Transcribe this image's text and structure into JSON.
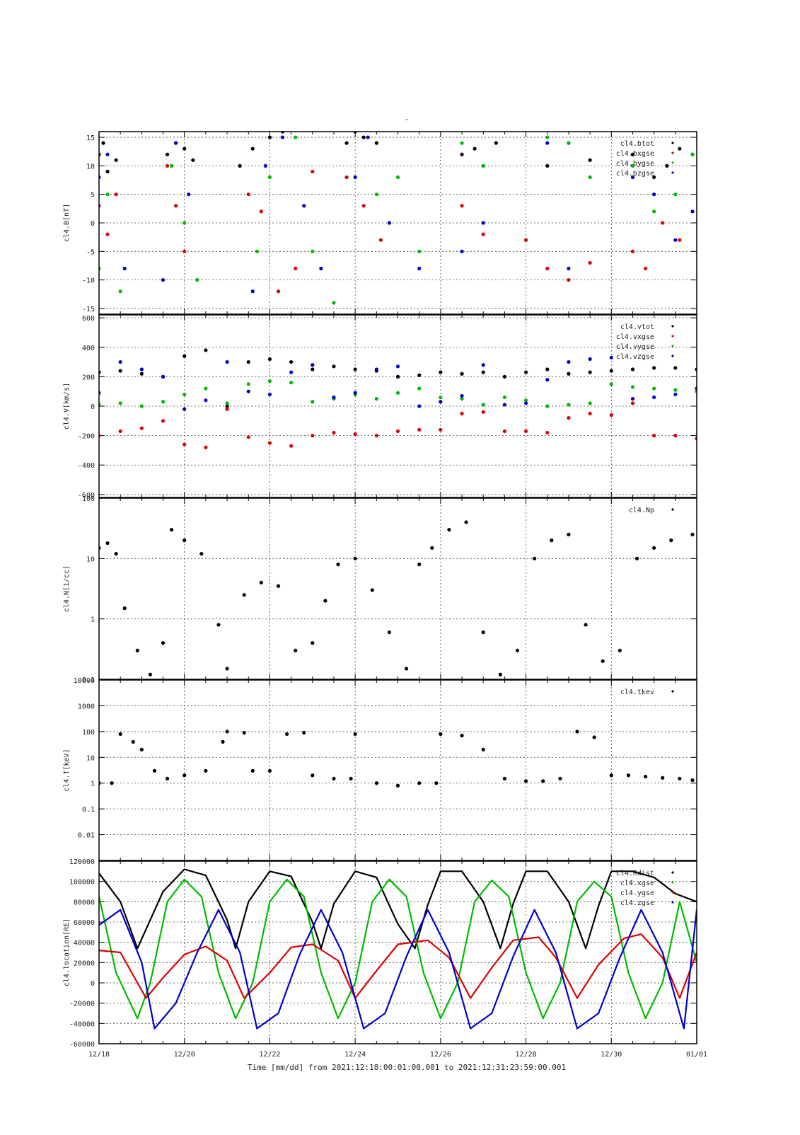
{
  "page_title": "-",
  "time_caption": "Time [mm/dd]  from 2021:12:18:00:01:00.001  to  2021:12:31:23:59:00.001",
  "x_axis": {
    "tick_labels": [
      "12/18",
      "12/20",
      "12/22",
      "12/24",
      "12/26",
      "12/28",
      "12/30",
      "01/01"
    ],
    "range_days": [
      0,
      14
    ]
  },
  "colors": {
    "black": "#000000",
    "red": "#dd0000",
    "green": "#00bb00",
    "blue": "#0000cc"
  },
  "chart_data": [
    {
      "type": "scatter",
      "ylabel": "cl4.B[nT]",
      "ylim": [
        -16,
        16
      ],
      "yticks": [
        15,
        10,
        5,
        0,
        -5,
        -10,
        -15
      ],
      "ytick_labels": [
        "15",
        "10",
        "5",
        "0",
        "-5",
        "-10",
        "-15"
      ],
      "grid": true,
      "legend_placement": "top-right",
      "series": [
        {
          "name": "cl4.btot",
          "color": "#000000",
          "x": [
            0,
            0.1,
            0.2,
            0.4,
            1.6,
            1.8,
            2.0,
            2.2,
            3.3,
            3.6,
            4.0,
            4.3,
            5.8,
            6.0,
            6.2,
            6.5,
            8.5,
            8.8,
            9.0,
            9.3,
            10.5,
            11.0,
            11.5,
            12.5,
            13.0,
            13.3,
            13.6,
            13.9
          ],
          "y": [
            12,
            14,
            9,
            11,
            12,
            14,
            13,
            11,
            10,
            13,
            15,
            16,
            14,
            16,
            15,
            14,
            12,
            13,
            10,
            14,
            10,
            14,
            11,
            12,
            8,
            10,
            13,
            12
          ]
        },
        {
          "name": "cl4.bxgse",
          "color": "#dd0000",
          "x": [
            0,
            0.2,
            0.4,
            1.6,
            1.8,
            2.0,
            3.5,
            3.8,
            4.2,
            4.6,
            5.0,
            5.8,
            6.2,
            6.6,
            8.5,
            9.0,
            10.0,
            10.5,
            11.0,
            11.5,
            12.5,
            12.8,
            13.2,
            13.6
          ],
          "y": [
            3,
            -2,
            5,
            10,
            3,
            -5,
            5,
            2,
            -12,
            -8,
            9,
            8,
            3,
            -3,
            3,
            -2,
            -3,
            -8,
            -10,
            -7,
            -5,
            -8,
            0,
            -3
          ]
        },
        {
          "name": "cl4.bygse",
          "color": "#00bb00",
          "x": [
            0,
            0.2,
            0.5,
            1.7,
            2.0,
            2.3,
            3.7,
            4.0,
            4.6,
            5.0,
            5.5,
            6.5,
            7.0,
            7.5,
            8.5,
            9.0,
            10.5,
            11.0,
            11.5,
            12.5,
            13.0,
            13.5,
            13.9
          ],
          "y": [
            -8,
            5,
            -12,
            10,
            0,
            -10,
            -5,
            8,
            15,
            -5,
            -14,
            5,
            8,
            -5,
            14,
            10,
            15,
            14,
            8,
            10,
            2,
            5,
            12
          ]
        },
        {
          "name": "cl4.bzgse",
          "color": "#0000cc",
          "x": [
            0,
            0.2,
            0.6,
            1.5,
            1.8,
            2.1,
            3.6,
            3.9,
            4.3,
            4.8,
            5.2,
            6.0,
            6.3,
            6.8,
            7.5,
            8.5,
            9.0,
            10.5,
            11.0,
            12.5,
            13.0,
            13.5,
            13.9
          ],
          "y": [
            8,
            12,
            -8,
            -10,
            14,
            5,
            -12,
            10,
            15,
            3,
            -8,
            8,
            15,
            0,
            -8,
            -5,
            0,
            14,
            -8,
            8,
            5,
            -3,
            2
          ]
        }
      ]
    },
    {
      "type": "scatter",
      "ylabel": "cl4.V[km/s]",
      "ylim": [
        -620,
        620
      ],
      "yticks": [
        600,
        400,
        200,
        0,
        -200,
        -400,
        -600
      ],
      "ytick_labels": [
        "600",
        "400",
        "200",
        "0",
        "-200",
        "-400",
        "-600"
      ],
      "grid": true,
      "legend_placement": "top-right",
      "series": [
        {
          "name": "cl4.vtot",
          "color": "#000000",
          "x": [
            0,
            0.5,
            1.0,
            1.5,
            2.0,
            2.5,
            3.0,
            3.5,
            4.0,
            4.5,
            5.0,
            5.5,
            6.0,
            6.5,
            7.0,
            7.5,
            8.0,
            8.5,
            9.0,
            9.5,
            10.0,
            10.5,
            11.0,
            11.5,
            12.0,
            12.5,
            13.0,
            13.5,
            14.0
          ],
          "y": [
            230,
            240,
            220,
            200,
            340,
            380,
            0,
            300,
            320,
            300,
            250,
            270,
            250,
            240,
            200,
            210,
            230,
            220,
            230,
            200,
            230,
            250,
            220,
            230,
            240,
            250,
            260,
            260,
            250
          ]
        },
        {
          "name": "cl4.vxgse",
          "color": "#dd0000",
          "x": [
            0,
            0.5,
            1.0,
            1.5,
            2.0,
            2.5,
            3.0,
            3.5,
            4.0,
            4.5,
            5.0,
            5.5,
            6.0,
            6.5,
            7.0,
            7.5,
            8.0,
            8.5,
            9.0,
            9.5,
            10.0,
            10.5,
            11.0,
            11.5,
            12.0,
            12.5,
            13.0,
            13.5,
            14.0
          ],
          "y": [
            -200,
            -170,
            -150,
            -100,
            -260,
            -280,
            -20,
            -210,
            -250,
            -270,
            -200,
            -180,
            -190,
            -200,
            -170,
            -160,
            -160,
            -50,
            -40,
            -170,
            -170,
            -180,
            -80,
            -50,
            -60,
            20,
            -200,
            -200,
            -220
          ]
        },
        {
          "name": "cl4.vygse",
          "color": "#00bb00",
          "x": [
            0,
            0.5,
            1.0,
            1.5,
            2.0,
            2.5,
            3.0,
            3.5,
            4.0,
            4.5,
            5.0,
            5.5,
            6.0,
            6.5,
            7.0,
            7.5,
            8.0,
            8.5,
            9.0,
            9.5,
            10.0,
            10.5,
            11.0,
            11.5,
            12.0,
            12.5,
            13.0,
            13.5,
            14.0
          ],
          "y": [
            10,
            20,
            0,
            30,
            80,
            120,
            20,
            150,
            170,
            160,
            30,
            50,
            80,
            50,
            90,
            120,
            60,
            50,
            10,
            60,
            40,
            0,
            10,
            20,
            150,
            130,
            120,
            110,
            100
          ]
        },
        {
          "name": "cl4.vzgse",
          "color": "#0000cc",
          "x": [
            0,
            0.5,
            1.0,
            1.5,
            2.0,
            2.5,
            3.0,
            3.5,
            4.0,
            4.5,
            5.0,
            5.5,
            6.0,
            6.5,
            7.0,
            7.5,
            8.0,
            8.5,
            9.0,
            9.5,
            10.0,
            10.5,
            11.0,
            11.5,
            12.0,
            12.5,
            13.0,
            13.5,
            14.0
          ],
          "y": [
            90,
            300,
            250,
            200,
            -20,
            40,
            300,
            100,
            80,
            230,
            280,
            60,
            90,
            250,
            270,
            0,
            30,
            70,
            280,
            10,
            20,
            180,
            300,
            320,
            330,
            50,
            60,
            80,
            120
          ]
        }
      ]
    },
    {
      "type": "scatter",
      "ylabel": "cl4.N[1/cc]",
      "y_scale": "log",
      "ylim": [
        0.1,
        100
      ],
      "yticks": [
        100,
        10,
        1,
        0.1
      ],
      "ytick_labels": [
        "100",
        "10",
        "1",
        "0.1"
      ],
      "grid": true,
      "legend_placement": "top-right",
      "series": [
        {
          "name": "cl4.Np",
          "color": "#000000",
          "x": [
            0,
            0.2,
            0.4,
            0.6,
            0.9,
            1.2,
            1.5,
            1.7,
            2.0,
            2.4,
            2.8,
            3.0,
            3.4,
            3.8,
            4.2,
            4.6,
            5.0,
            5.3,
            5.6,
            6.0,
            6.4,
            6.8,
            7.2,
            7.5,
            7.8,
            8.2,
            8.6,
            9.0,
            9.4,
            9.8,
            10.2,
            10.6,
            11.0,
            11.4,
            11.8,
            12.2,
            12.6,
            13.0,
            13.4,
            13.9
          ],
          "y": [
            15,
            18,
            12,
            1.5,
            0.3,
            0.12,
            0.4,
            30,
            20,
            12,
            0.8,
            0.15,
            2.5,
            4,
            3.5,
            0.3,
            0.4,
            2,
            8,
            10,
            3,
            0.6,
            0.15,
            8,
            15,
            30,
            40,
            0.6,
            0.12,
            0.3,
            10,
            20,
            25,
            0.8,
            0.2,
            0.3,
            10,
            15,
            20,
            25
          ]
        }
      ]
    },
    {
      "type": "scatter",
      "ylabel": "cl4.T[keV]",
      "y_scale": "log",
      "ylim": [
        0.001,
        10000
      ],
      "yticks": [
        10000,
        1000,
        100,
        10,
        1,
        0.1,
        0.01
      ],
      "ytick_labels": [
        "10000",
        "1000",
        "100",
        "10",
        "1",
        "0.1",
        "0.01"
      ],
      "grid": true,
      "legend_placement": "top-right",
      "series": [
        {
          "name": "cl4.tkev",
          "color": "#000000",
          "x": [
            0,
            0.3,
            0.5,
            0.8,
            1.0,
            1.3,
            1.6,
            2.0,
            2.5,
            2.9,
            3.0,
            3.4,
            3.6,
            4.0,
            4.4,
            4.8,
            5.0,
            5.5,
            5.9,
            6.0,
            6.5,
            7.0,
            7.5,
            7.9,
            8.0,
            8.5,
            9.0,
            9.5,
            10.0,
            10.4,
            10.8,
            11.2,
            11.6,
            12.0,
            12.4,
            12.8,
            13.2,
            13.6,
            13.9
          ],
          "y": [
            1,
            1,
            80,
            40,
            20,
            3,
            1.5,
            2,
            3,
            40,
            100,
            90,
            3,
            3,
            80,
            90,
            2,
            1.5,
            1.5,
            80,
            1,
            0.8,
            1,
            1,
            80,
            70,
            20,
            1.5,
            1.2,
            1.2,
            1.5,
            100,
            60,
            2,
            2,
            1.8,
            1.6,
            1.5,
            1.3
          ]
        }
      ]
    },
    {
      "type": "line",
      "ylabel": "cl4.location[RE]",
      "ylim": [
        -60000,
        120000
      ],
      "yticks": [
        120000,
        100000,
        80000,
        60000,
        40000,
        20000,
        0,
        -20000,
        -40000,
        -60000
      ],
      "ytick_labels": [
        "120000",
        "100000",
        "80000",
        "60000",
        "40000",
        "20000",
        "0",
        "-20000",
        "-40000",
        "-60000"
      ],
      "grid": true,
      "legend_placement": "top-right",
      "series": [
        {
          "name": "cl4.Rdist",
          "color": "#000000",
          "x": [
            0,
            0.5,
            0.9,
            1.5,
            2.0,
            2.5,
            3.0,
            3.2,
            3.5,
            4.0,
            4.5,
            5.0,
            5.2,
            5.5,
            6.0,
            6.5,
            7.0,
            7.4,
            7.7,
            8.0,
            8.5,
            9.0,
            9.4,
            9.7,
            10.0,
            10.5,
            11.0,
            11.4,
            11.7,
            12.0,
            12.5,
            13.0,
            13.5,
            14.0
          ],
          "y": [
            108000,
            80000,
            34000,
            90000,
            112000,
            106000,
            62000,
            34000,
            80000,
            110000,
            105000,
            60000,
            34000,
            78000,
            110000,
            104000,
            58000,
            34000,
            77000,
            110000,
            110000,
            80000,
            34000,
            78000,
            110000,
            110000,
            80000,
            34000,
            76000,
            110000,
            110000,
            104000,
            88000,
            80000
          ]
        },
        {
          "name": "cl4.xgse",
          "color": "#00bb00",
          "x": [
            0,
            0.4,
            0.9,
            1.2,
            1.6,
            2.0,
            2.4,
            2.8,
            3.2,
            3.6,
            4.0,
            4.4,
            4.8,
            5.2,
            5.6,
            6.0,
            6.4,
            6.8,
            7.2,
            7.6,
            8.0,
            8.4,
            8.8,
            9.2,
            9.6,
            10.0,
            10.4,
            10.8,
            11.2,
            11.6,
            12.0,
            12.4,
            12.8,
            13.2,
            13.6,
            14.0
          ],
          "y": [
            85000,
            10000,
            -35000,
            0,
            80000,
            102000,
            85000,
            10000,
            -35000,
            0,
            80000,
            102000,
            85000,
            10000,
            -35000,
            0,
            80000,
            102000,
            85000,
            10000,
            -35000,
            0,
            80000,
            101000,
            85000,
            10000,
            -35000,
            0,
            80000,
            100000,
            85000,
            10000,
            -35000,
            0,
            80000,
            20000
          ]
        },
        {
          "name": "cl4.ygse",
          "color": "#dd0000",
          "x": [
            0,
            0.5,
            1.1,
            1.5,
            2.0,
            2.5,
            3.0,
            3.4,
            4.0,
            4.5,
            5.0,
            5.6,
            6.0,
            6.5,
            7.0,
            7.7,
            8.2,
            8.7,
            9.2,
            9.7,
            10.3,
            10.7,
            11.2,
            11.7,
            12.3,
            12.7,
            13.2,
            13.6,
            14.0
          ],
          "y": [
            32000,
            30000,
            -15000,
            5000,
            28000,
            36000,
            22000,
            -15000,
            10000,
            35000,
            38000,
            22000,
            -15000,
            12000,
            38000,
            42000,
            25000,
            -15000,
            15000,
            42000,
            45000,
            25000,
            -15000,
            18000,
            44000,
            48000,
            25000,
            -15000,
            30000
          ]
        },
        {
          "name": "cl4.zgse",
          "color": "#0000cc",
          "x": [
            0,
            0.5,
            1.0,
            1.3,
            1.8,
            2.3,
            2.8,
            3.3,
            3.7,
            4.2,
            4.7,
            5.2,
            5.7,
            6.2,
            6.7,
            7.2,
            7.7,
            8.2,
            8.7,
            9.2,
            9.7,
            10.2,
            10.7,
            11.2,
            11.7,
            12.2,
            12.7,
            13.2,
            13.7,
            14.0
          ],
          "y": [
            57000,
            72000,
            20000,
            -45000,
            -20000,
            30000,
            72000,
            30000,
            -45000,
            -30000,
            28000,
            72000,
            30000,
            -45000,
            -30000,
            26000,
            72000,
            30000,
            -45000,
            -30000,
            26000,
            72000,
            30000,
            -45000,
            -30000,
            25000,
            72000,
            30000,
            -45000,
            72000
          ]
        }
      ]
    }
  ]
}
